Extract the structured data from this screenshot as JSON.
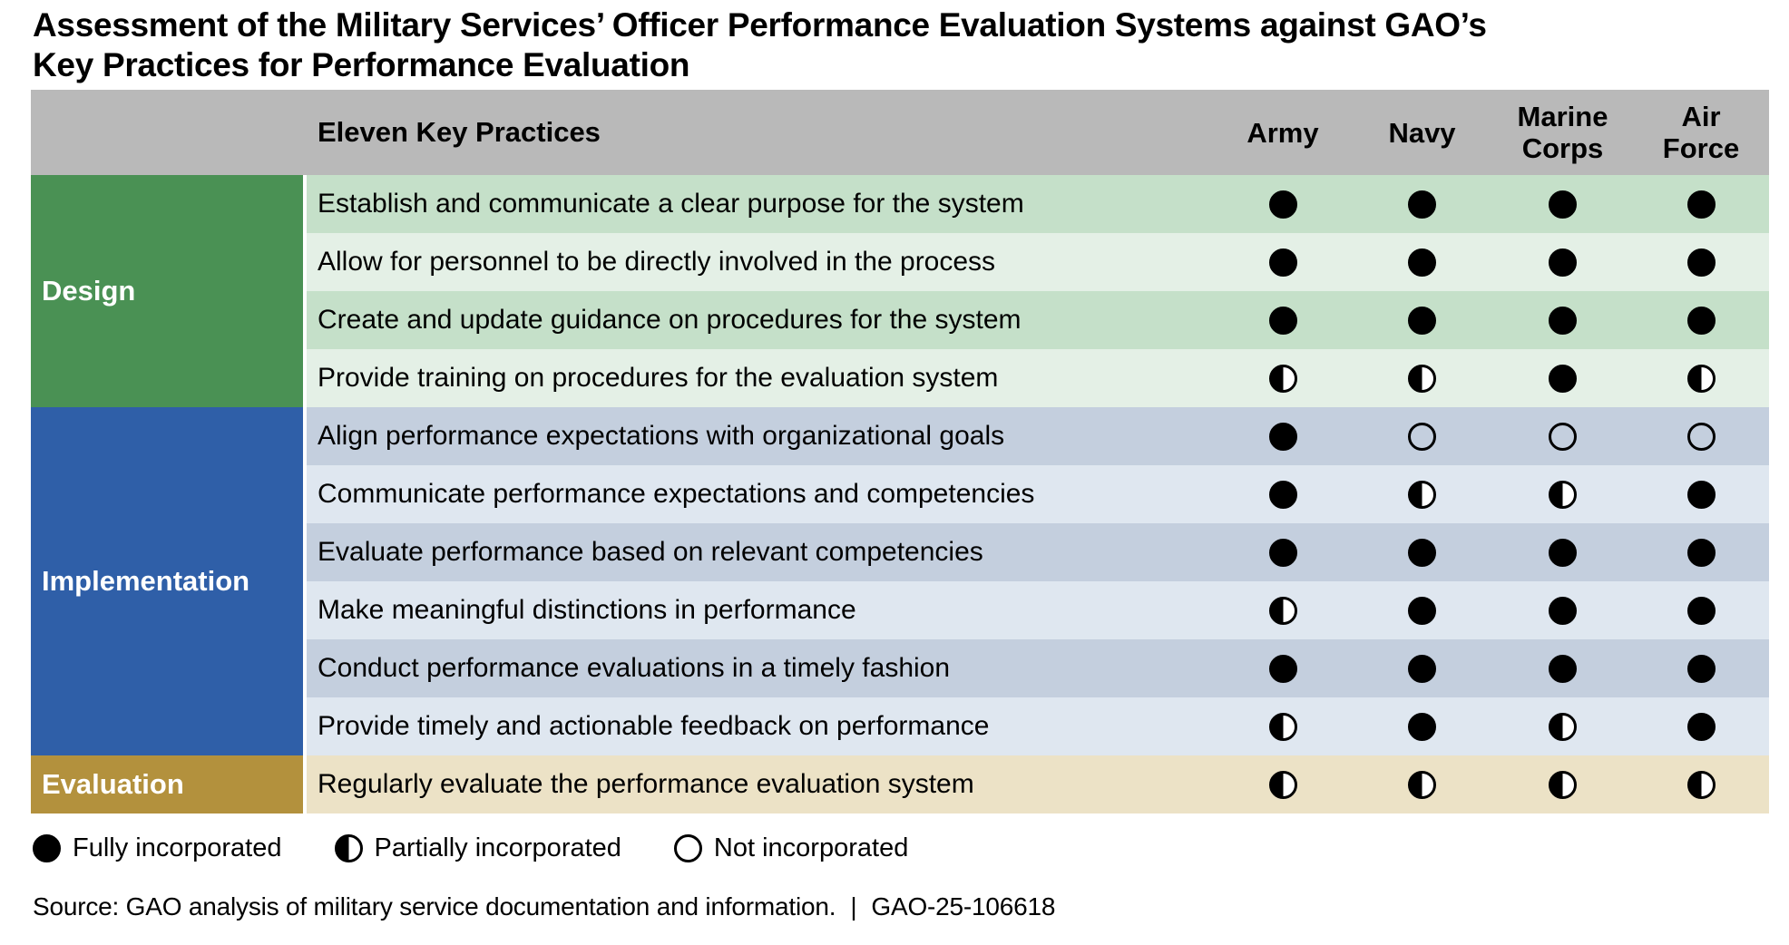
{
  "title_lines": [
    "Assessment of the Military Services’ Officer Performance Evaluation Systems against GAO’s",
    "Key Practices for Performance Evaluation"
  ],
  "chart_data": {
    "type": "table",
    "title": "Assessment of the Military Services’ Officer Performance Evaluation Systems against GAO’s Key Practices for Performance Evaluation",
    "practices_header": "Eleven Key Practices",
    "service_columns": [
      "Army",
      "Navy",
      "Marine Corps",
      "Air Force"
    ],
    "rating_scale": {
      "full": "Fully incorporated",
      "half": "Partially incorporated",
      "none": "Not incorporated"
    },
    "sections": [
      {
        "label": "Design",
        "color": "#4a9154",
        "row_count": 4
      },
      {
        "label": "Implementation",
        "color": "#2f5fa8",
        "row_count": 6
      },
      {
        "label": "Evaluation",
        "color": "#b3913d",
        "row_count": 1
      }
    ],
    "rows": [
      {
        "section": "Design",
        "practice": "Establish and communicate a clear purpose for the system",
        "ratings": [
          "full",
          "full",
          "full",
          "full"
        ]
      },
      {
        "section": "Design",
        "practice": "Allow for personnel to be directly involved in the process",
        "ratings": [
          "full",
          "full",
          "full",
          "full"
        ]
      },
      {
        "section": "Design",
        "practice": "Create and update guidance on procedures for the system",
        "ratings": [
          "full",
          "full",
          "full",
          "full"
        ]
      },
      {
        "section": "Design",
        "practice": "Provide training on procedures for the evaluation system",
        "ratings": [
          "half",
          "half",
          "full",
          "half"
        ]
      },
      {
        "section": "Implementation",
        "practice": "Align performance expectations with organizational goals",
        "ratings": [
          "full",
          "none",
          "none",
          "none"
        ]
      },
      {
        "section": "Implementation",
        "practice": "Communicate performance expectations and competencies",
        "ratings": [
          "full",
          "half",
          "half",
          "full"
        ]
      },
      {
        "section": "Implementation",
        "practice": "Evaluate performance based on relevant competencies",
        "ratings": [
          "full",
          "full",
          "full",
          "full"
        ]
      },
      {
        "section": "Implementation",
        "practice": "Make meaningful distinctions in performance",
        "ratings": [
          "half",
          "full",
          "full",
          "full"
        ]
      },
      {
        "section": "Implementation",
        "practice": "Conduct performance evaluations in a timely fashion",
        "ratings": [
          "full",
          "full",
          "full",
          "full"
        ]
      },
      {
        "section": "Implementation",
        "practice": "Provide timely and actionable feedback on performance",
        "ratings": [
          "half",
          "full",
          "half",
          "full"
        ]
      },
      {
        "section": "Evaluation",
        "practice": "Regularly evaluate the performance evaluation system",
        "ratings": [
          "half",
          "half",
          "half",
          "half"
        ]
      }
    ]
  },
  "legend": {
    "items": [
      {
        "rating": "full",
        "label": "Fully incorporated"
      },
      {
        "rating": "half",
        "label": "Partially incorporated"
      },
      {
        "rating": "none",
        "label": "Not incorporated"
      }
    ]
  },
  "source": {
    "text": "Source: GAO analysis of military service documentation and information.",
    "separator": "|",
    "report_id": "GAO-25-106618"
  },
  "colors": {
    "header_bg": "#b9b9b9",
    "design_block": "#4a9154",
    "design_row_dark": "#c5e0c9",
    "design_row_light": "#e4f0e6",
    "implementation_block": "#2f5fa8",
    "implementation_row_dark": "#c4cfde",
    "implementation_row_light": "#dfe7f0",
    "evaluation_block": "#b3913d",
    "evaluation_row": "#ece2c6",
    "symbol": "#000000"
  }
}
